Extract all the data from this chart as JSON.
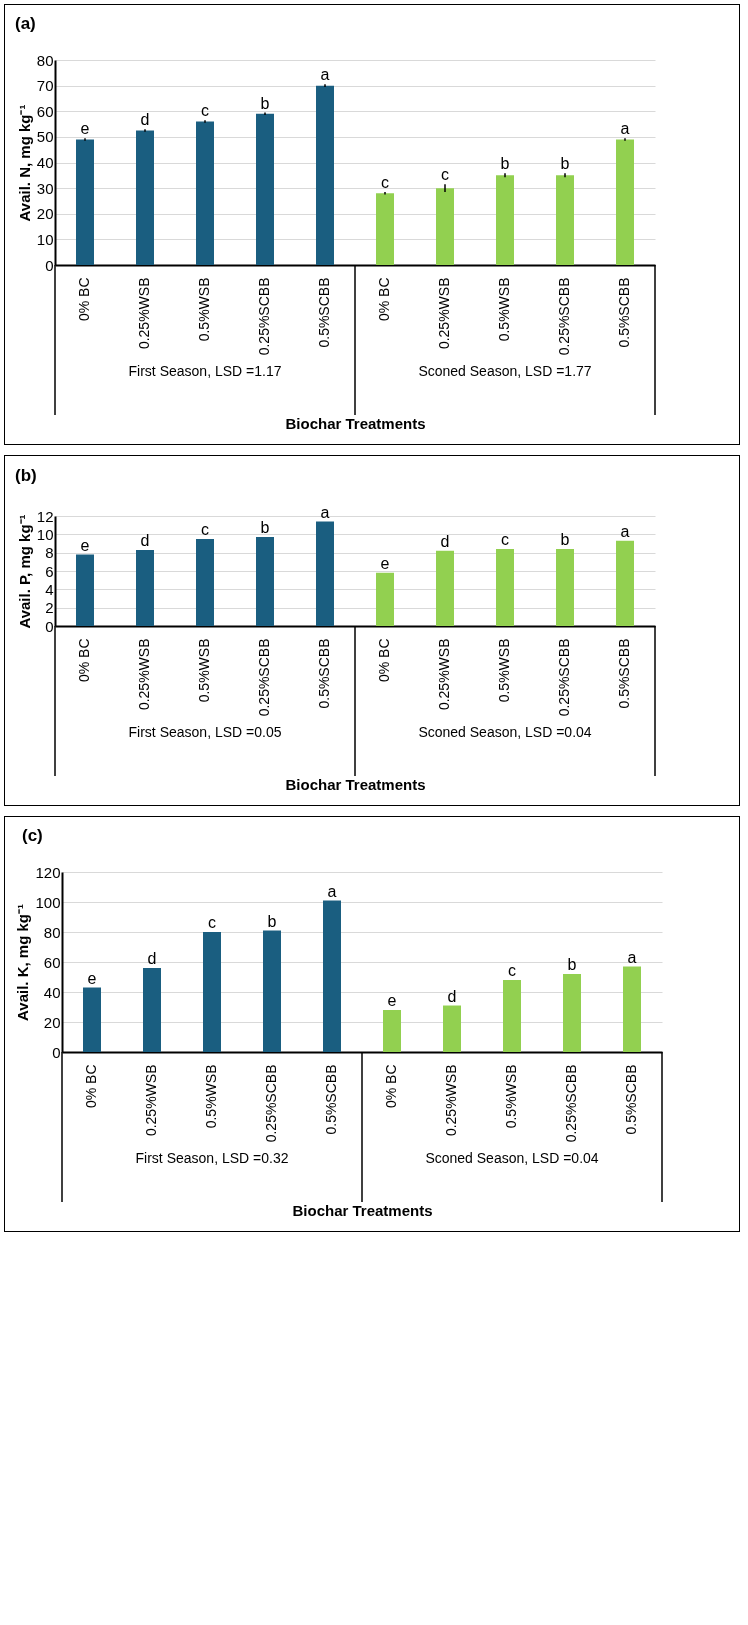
{
  "chart_data": [
    {
      "type": "bar",
      "title": "(a)",
      "xlabel": "Biochar Treatments",
      "ylabel": "Avail. N, mg kg⁻¹",
      "categories": [
        "0% BC",
        "0.25%WSB",
        "0.5%WSB",
        "0.25%SCBB",
        "0.5%SCBB",
        "0% BC",
        "0.25%WSB",
        "0.5%WSB",
        "0.25%SCBB",
        "0.5%SCBB"
      ],
      "values": [
        49,
        52.5,
        56,
        59,
        70,
        28,
        30,
        35,
        35,
        49
      ],
      "errors": [
        0.5,
        0.5,
        0.5,
        0.5,
        0.5,
        0.5,
        1.5,
        0.8,
        0.8,
        0.5
      ],
      "colors": [
        "#1a5e80",
        "#1a5e80",
        "#1a5e80",
        "#1a5e80",
        "#1a5e80",
        "#92d050",
        "#92d050",
        "#92d050",
        "#92d050",
        "#92d050"
      ],
      "value_labels": [
        "e",
        "d",
        "c",
        "b",
        "a",
        "c",
        "c",
        "b",
        "b",
        "a"
      ],
      "annotations": [
        "First Season, LSD =1.17",
        "Sconed Season, LSD =1.77"
      ],
      "ylim": [
        0,
        80
      ],
      "yticks": [
        0,
        10,
        20,
        30,
        40,
        50,
        60,
        70,
        80
      ],
      "grid": "y"
    },
    {
      "type": "bar",
      "title": "(b)",
      "xlabel": "Biochar Treatments",
      "ylabel": "Avail. P, mg kg⁻¹",
      "categories": [
        "0% BC",
        "0.25%WSB",
        "0.5%WSB",
        "0.25%SCBB",
        "0.5%SCBB",
        "0% BC",
        "0.25%WSB",
        "0.5%WSB",
        "0.25%SCBB",
        "0.5%SCBB"
      ],
      "values": [
        7.8,
        8.3,
        9.5,
        9.7,
        11.4,
        5.8,
        8.2,
        8.4,
        8.4,
        9.3
      ],
      "colors": [
        "#1a5e80",
        "#1a5e80",
        "#1a5e80",
        "#1a5e80",
        "#1a5e80",
        "#92d050",
        "#92d050",
        "#92d050",
        "#92d050",
        "#92d050"
      ],
      "value_labels": [
        "e",
        "d",
        "c",
        "b",
        "a",
        "e",
        "d",
        "c",
        "b",
        "a"
      ],
      "annotations": [
        "First Season, LSD =0.05",
        "Sconed Season, LSD =0.04"
      ],
      "ylim": [
        0,
        12
      ],
      "yticks": [
        0,
        2,
        4,
        6,
        8,
        10,
        12
      ],
      "grid": "y"
    },
    {
      "type": "bar",
      "title": "(c)",
      "xlabel": "Biochar Treatments",
      "ylabel": "Avail. K, mg kg⁻¹",
      "categories": [
        "0% BC",
        "0.25%WSB",
        "0.5%WSB",
        "0.25%SCBB",
        "0.5%SCBB",
        "0% BC",
        "0.25%WSB",
        "0.5%WSB",
        "0.25%SCBB",
        "0.5%SCBB"
      ],
      "values": [
        43,
        56,
        80,
        81,
        101,
        28,
        31,
        48,
        52,
        57
      ],
      "colors": [
        "#1a5e80",
        "#1a5e80",
        "#1a5e80",
        "#1a5e80",
        "#1a5e80",
        "#92d050",
        "#92d050",
        "#92d050",
        "#92d050",
        "#92d050"
      ],
      "value_labels": [
        "e",
        "d",
        "c",
        "b",
        "a",
        "e",
        "d",
        "c",
        "b",
        "a"
      ],
      "annotations": [
        "First Season, LSD =0.32",
        "Sconed Season, LSD =0.04"
      ],
      "ylim": [
        0,
        120
      ],
      "yticks": [
        0,
        20,
        40,
        60,
        80,
        100,
        120
      ],
      "grid": "y"
    }
  ]
}
